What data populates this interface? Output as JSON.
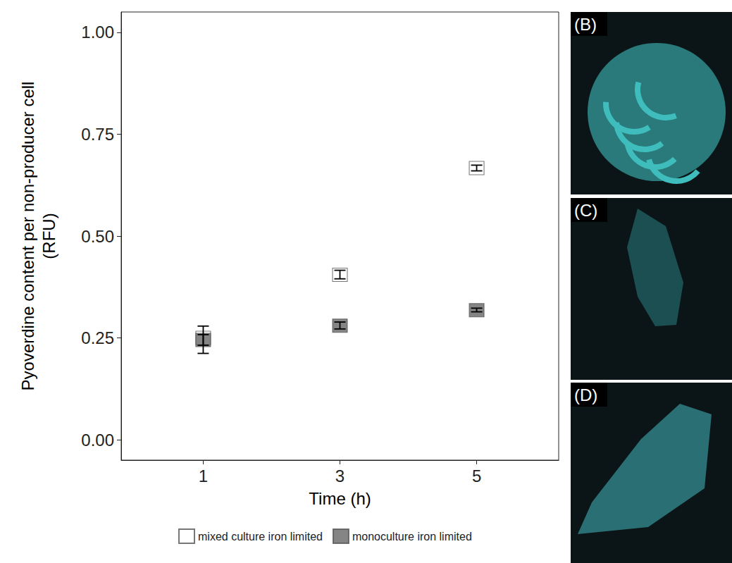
{
  "chart_data": {
    "type": "scatter",
    "x_label": "Time (h)",
    "y_label": "Pyoverdine content per non-producer cell\n(RFU)",
    "x": [
      1,
      3,
      5
    ],
    "series": [
      {
        "name": "mixed culture iron limited",
        "color": "#ffffff",
        "marker": "square",
        "values": [
          0.25,
          0.405,
          0.667
        ],
        "error_low": [
          0.212,
          0.395,
          0.66
        ],
        "error_high": [
          0.279,
          0.416,
          0.674
        ]
      },
      {
        "name": "monoculture iron limited",
        "color": "#666666",
        "marker": "square",
        "values": [
          0.245,
          0.28,
          0.318
        ],
        "error_low": [
          0.232,
          0.272,
          0.314
        ],
        "error_high": [
          0.258,
          0.289,
          0.323
        ]
      }
    ],
    "xlim": [
      -0.2,
      6.2
    ],
    "xticks": [
      1,
      3,
      5
    ],
    "ylim": [
      -0.05,
      1.05
    ],
    "yticks": [
      {
        "value": 0,
        "label": "0.00"
      },
      {
        "value": 0.25,
        "label": "0.25"
      },
      {
        "value": 0.5,
        "label": "0.50"
      },
      {
        "value": 0.75,
        "label": "0.75"
      },
      {
        "value": 1,
        "label": "1.00"
      }
    ],
    "grid": false,
    "legend": "bottom",
    "panels": [
      {
        "label": "(B)"
      },
      {
        "label": "(C)"
      },
      {
        "label": "(D)"
      }
    ]
  }
}
